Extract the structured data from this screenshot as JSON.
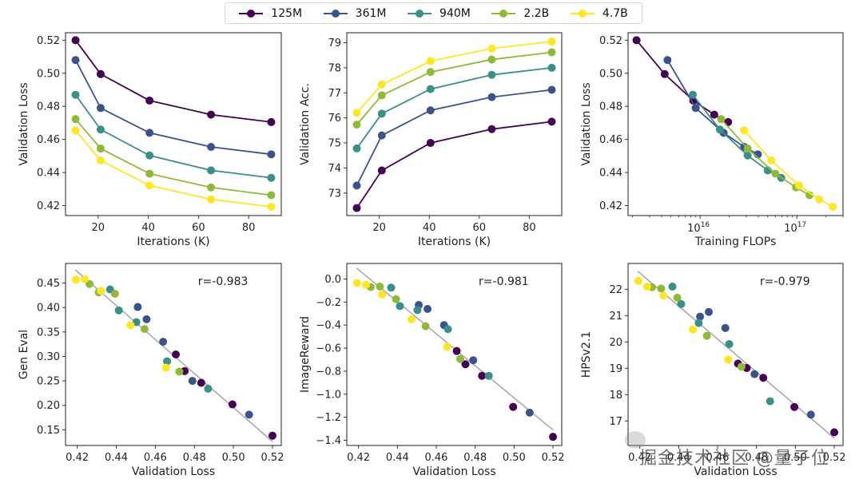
{
  "legend": {
    "items": [
      {
        "label": "125M",
        "color": "#440154"
      },
      {
        "label": "361M",
        "color": "#3b528b"
      },
      {
        "label": "940M",
        "color": "#3a8f88"
      },
      {
        "label": "2.2B",
        "color": "#90b93a"
      },
      {
        "label": "4.7B",
        "color": "#fde725"
      }
    ]
  },
  "watermark": {
    "text": "掘金技术社区 @量子位"
  },
  "chart_data": [
    {
      "id": "loss-vs-iter",
      "type": "line",
      "title": "",
      "xlabel": "Iterations (K)",
      "ylabel": "Validation Loss",
      "xlim": [
        7,
        93
      ],
      "ylim": [
        0.414,
        0.5245
      ],
      "xticks": [
        20,
        40,
        60,
        80
      ],
      "xticklabels": [
        "20",
        "40",
        "60",
        "80"
      ],
      "yticks": [
        0.42,
        0.44,
        0.46,
        0.48,
        0.5,
        0.52
      ],
      "yticklabels": [
        "0.42",
        "0.44",
        "0.46",
        "0.48",
        "0.50",
        "0.52"
      ],
      "x": [
        11,
        21,
        40.5,
        65,
        89
      ],
      "series": [
        {
          "name": "125M",
          "values": [
            0.52,
            0.4995,
            0.4835,
            0.475,
            0.4705
          ]
        },
        {
          "name": "361M",
          "values": [
            0.508,
            0.479,
            0.464,
            0.4555,
            0.451
          ]
        },
        {
          "name": "940M",
          "values": [
            0.487,
            0.466,
            0.4503,
            0.4413,
            0.4368
          ]
        },
        {
          "name": "2.2B",
          "values": [
            0.4723,
            0.4545,
            0.4393,
            0.431,
            0.4263
          ]
        },
        {
          "name": "4.7B",
          "values": [
            0.4655,
            0.4473,
            0.4322,
            0.4238,
            0.4193
          ]
        }
      ]
    },
    {
      "id": "acc-vs-iter",
      "type": "line",
      "title": "",
      "xlabel": "Iterations (K)",
      "ylabel": "Validation Acc.",
      "xlim": [
        7,
        93
      ],
      "ylim": [
        72.1,
        79.4
      ],
      "xticks": [
        20,
        40,
        60,
        80
      ],
      "xticklabels": [
        "20",
        "40",
        "60",
        "80"
      ],
      "yticks": [
        73,
        74,
        75,
        76,
        77,
        78,
        79
      ],
      "yticklabels": [
        "73",
        "74",
        "75",
        "76",
        "77",
        "78",
        "79"
      ],
      "x": [
        11,
        21,
        40.5,
        65,
        89
      ],
      "series": [
        {
          "name": "125M",
          "values": [
            72.4,
            73.9,
            75.0,
            75.55,
            75.85
          ]
        },
        {
          "name": "361M",
          "values": [
            73.3,
            75.3,
            76.3,
            76.83,
            77.12
          ]
        },
        {
          "name": "940M",
          "values": [
            74.78,
            76.17,
            77.15,
            77.72,
            78.0
          ]
        },
        {
          "name": "2.2B",
          "values": [
            75.73,
            76.9,
            77.83,
            78.33,
            78.62
          ]
        },
        {
          "name": "4.7B",
          "values": [
            76.2,
            77.33,
            78.27,
            78.77,
            79.05
          ]
        }
      ]
    },
    {
      "id": "loss-vs-flops",
      "type": "line",
      "xscale": "log",
      "title": "",
      "xlabel": "Training FLOPs",
      "ylabel": "Validation Loss",
      "xlim": [
        1800000000000000.0,
        3e+17
      ],
      "ylim": [
        0.414,
        0.5245
      ],
      "xticks": [
        1e+16,
        1e+17
      ],
      "xticklabels": [
        [
          "10",
          "16"
        ],
        [
          "10",
          "17"
        ]
      ],
      "yticks": [
        0.42,
        0.44,
        0.46,
        0.48,
        0.5,
        0.52
      ],
      "yticklabels": [
        "0.42",
        "0.44",
        "0.46",
        "0.48",
        "0.50",
        "0.52"
      ],
      "series": [
        {
          "name": "125M",
          "x": [
            2200000000000000.0,
            4300000000000000.0,
            8500000000000000.0,
            1.4e+16,
            1.95e+16
          ],
          "values": [
            0.52,
            0.4995,
            0.4835,
            0.475,
            0.4705
          ]
        },
        {
          "name": "361M",
          "x": [
            4600000000000000.0,
            9000000000000000.0,
            1.75e+16,
            2.85e+16,
            3.95e+16
          ],
          "values": [
            0.508,
            0.479,
            0.464,
            0.4555,
            0.451
          ]
        },
        {
          "name": "940M",
          "x": [
            8400000000000000.0,
            1.6e+16,
            3.1e+16,
            5e+16,
            6.9e+16
          ],
          "values": [
            0.487,
            0.466,
            0.4503,
            0.4413,
            0.4368
          ]
        },
        {
          "name": "2.2B",
          "x": [
            1.65e+16,
            3.1e+16,
            6e+16,
            9.8e+16,
            1.35e+17
          ],
          "values": [
            0.4723,
            0.4545,
            0.4393,
            0.431,
            0.4263
          ]
        },
        {
          "name": "4.7B",
          "x": [
            2.85e+16,
            5.45e+16,
            1.05e+17,
            1.7e+17,
            2.35e+17
          ],
          "values": [
            0.4655,
            0.4473,
            0.4322,
            0.4238,
            0.4193
          ]
        }
      ]
    },
    {
      "id": "geneval-vs-loss",
      "type": "scatter",
      "title": "",
      "xlabel": "Validation Loss",
      "ylabel": "Gen Eval",
      "annotation": "r=-0.983",
      "xlim": [
        0.414,
        0.5245
      ],
      "ylim": [
        0.118,
        0.49
      ],
      "xticks": [
        0.42,
        0.44,
        0.46,
        0.48,
        0.5,
        0.52
      ],
      "xticklabels": [
        "0.42",
        "0.44",
        "0.46",
        "0.48",
        "0.50",
        "0.52"
      ],
      "yticks": [
        0.15,
        0.2,
        0.25,
        0.3,
        0.35,
        0.4,
        0.45
      ],
      "yticklabels": [
        "0.15",
        "0.20",
        "0.25",
        "0.30",
        "0.35",
        "0.40",
        "0.45"
      ],
      "fit_line": {
        "x": [
          0.419,
          0.52
        ],
        "y": [
          0.477,
          0.126
        ]
      },
      "series": [
        {
          "name": "125M",
          "x": [
            0.52,
            0.4995,
            0.4835,
            0.475,
            0.4705
          ],
          "values": [
            0.138,
            0.202,
            0.246,
            0.27,
            0.304
          ]
        },
        {
          "name": "361M",
          "x": [
            0.508,
            0.479,
            0.464,
            0.4555,
            0.451
          ],
          "values": [
            0.181,
            0.25,
            0.33,
            0.376,
            0.401
          ]
        },
        {
          "name": "940M",
          "x": [
            0.487,
            0.466,
            0.4503,
            0.4413,
            0.4368
          ],
          "values": [
            0.234,
            0.29,
            0.37,
            0.394,
            0.437
          ]
        },
        {
          "name": "2.2B",
          "x": [
            0.4723,
            0.4545,
            0.4393,
            0.431,
            0.4263
          ],
          "values": [
            0.269,
            0.356,
            0.428,
            0.431,
            0.448
          ]
        },
        {
          "name": "4.7B",
          "x": [
            0.4655,
            0.4473,
            0.4322,
            0.4238,
            0.4193
          ],
          "values": [
            0.277,
            0.364,
            0.434,
            0.458,
            0.457
          ]
        }
      ]
    },
    {
      "id": "imagereward-vs-loss",
      "type": "scatter",
      "title": "",
      "xlabel": "Validation Loss",
      "ylabel": "ImageReward",
      "annotation": "r=-0.981",
      "xlim": [
        0.414,
        0.5245
      ],
      "ylim": [
        -1.445,
        0.135
      ],
      "xticks": [
        0.42,
        0.44,
        0.46,
        0.48,
        0.5,
        0.52
      ],
      "xticklabels": [
        "0.42",
        "0.44",
        "0.46",
        "0.48",
        "0.50",
        "0.52"
      ],
      "yticks": [
        -1.4,
        -1.2,
        -1.0,
        -0.8,
        -0.6,
        -0.4,
        -0.2,
        0.0
      ],
      "yticklabels": [
        "−1.4",
        "−1.2",
        "−1.0",
        "−0.8",
        "−0.6",
        "−0.4",
        "−0.2",
        "0.0"
      ],
      "fit_line": {
        "x": [
          0.419,
          0.52
        ],
        "y": [
          0.095,
          -1.31
        ]
      },
      "series": [
        {
          "name": "125M",
          "x": [
            0.52,
            0.4995,
            0.4835,
            0.475,
            0.4705
          ],
          "values": [
            -1.37,
            -1.11,
            -0.84,
            -0.74,
            -0.625
          ]
        },
        {
          "name": "361M",
          "x": [
            0.508,
            0.479,
            0.464,
            0.4555,
            0.451
          ],
          "values": [
            -1.16,
            -0.705,
            -0.4,
            -0.26,
            -0.225
          ]
        },
        {
          "name": "940M",
          "x": [
            0.487,
            0.466,
            0.4503,
            0.4413,
            0.4368
          ],
          "values": [
            -0.84,
            -0.435,
            -0.27,
            -0.235,
            -0.075
          ]
        },
        {
          "name": "2.2B",
          "x": [
            0.4723,
            0.4545,
            0.4393,
            0.431,
            0.4263
          ],
          "values": [
            -0.695,
            -0.41,
            -0.175,
            -0.065,
            -0.07
          ]
        },
        {
          "name": "4.7B",
          "x": [
            0.4655,
            0.4473,
            0.4322,
            0.4238,
            0.4193
          ],
          "values": [
            -0.59,
            -0.35,
            -0.135,
            -0.05,
            -0.035
          ]
        }
      ]
    },
    {
      "id": "hpsv21-vs-loss",
      "type": "scatter",
      "title": "",
      "xlabel": "Validation Loss",
      "ylabel": "HPSv2.1",
      "annotation": "r=-0.979",
      "xlim": [
        0.414,
        0.5245
      ],
      "ylim": [
        16.07,
        22.98
      ],
      "xticks": [
        0.42,
        0.44,
        0.46,
        0.48,
        0.5,
        0.52
      ],
      "xticklabels": [
        "0.42",
        "0.44",
        "0.46",
        "0.48",
        "0.50",
        "0.52"
      ],
      "yticks": [
        17,
        18,
        19,
        20,
        21,
        22
      ],
      "yticklabels": [
        "17",
        "18",
        "19",
        "20",
        "21",
        "22"
      ],
      "fit_line": {
        "x": [
          0.419,
          0.52
        ],
        "y": [
          22.68,
          16.35
        ]
      },
      "series": [
        {
          "name": "125M",
          "x": [
            0.52,
            0.4995,
            0.4835,
            0.475,
            0.4705
          ],
          "values": [
            16.57,
            17.53,
            18.64,
            19.01,
            19.18
          ]
        },
        {
          "name": "361M",
          "x": [
            0.508,
            0.479,
            0.464,
            0.4555,
            0.451
          ],
          "values": [
            17.24,
            18.78,
            20.53,
            21.14,
            20.96
          ]
        },
        {
          "name": "940M",
          "x": [
            0.487,
            0.466,
            0.4503,
            0.4413,
            0.4368
          ],
          "values": [
            17.75,
            19.92,
            20.72,
            21.44,
            22.1
          ]
        },
        {
          "name": "2.2B",
          "x": [
            0.4723,
            0.4545,
            0.4393,
            0.431,
            0.4263
          ],
          "values": [
            19.06,
            20.23,
            21.68,
            22.03,
            22.08
          ]
        },
        {
          "name": "4.7B",
          "x": [
            0.4655,
            0.4473,
            0.4322,
            0.4238,
            0.4193
          ],
          "values": [
            19.33,
            20.47,
            21.76,
            22.1,
            22.32
          ]
        }
      ]
    }
  ]
}
